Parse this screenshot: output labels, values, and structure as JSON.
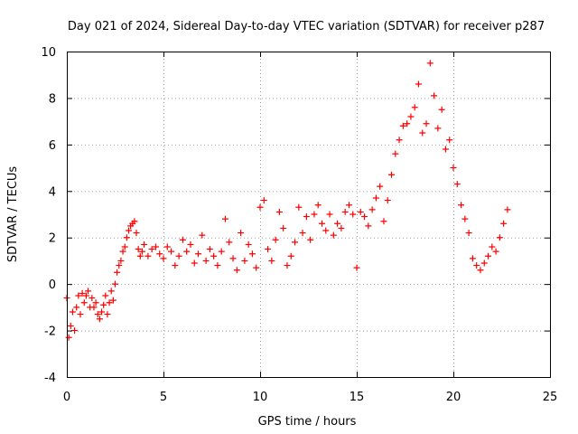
{
  "chart_data": {
    "type": "scatter",
    "title": "Day 021 of 2024, Sidereal Day-to-day VTEC variation (SDTVAR) for receiver p287",
    "xlabel": "GPS time / hours",
    "ylabel": "SDTVAR / TECUs",
    "xlim": [
      0,
      25
    ],
    "ylim": [
      -4,
      10
    ],
    "xticks": [
      "0",
      "5",
      "10",
      "15",
      "20",
      "25"
    ],
    "yticks": [
      "-4",
      "-2",
      "0",
      "2",
      "4",
      "6",
      "8",
      "10"
    ],
    "grid": true,
    "marker": "+",
    "color": "#ff0000",
    "series": [
      {
        "name": "SDTVAR",
        "x": [
          0.0,
          0.1,
          0.2,
          0.3,
          0.4,
          0.5,
          0.6,
          0.7,
          0.8,
          0.9,
          1.0,
          1.1,
          1.2,
          1.3,
          1.4,
          1.5,
          1.6,
          1.7,
          1.8,
          1.9,
          2.0,
          2.1,
          2.2,
          2.3,
          2.4,
          2.5,
          2.6,
          2.7,
          2.8,
          2.9,
          3.0,
          3.1,
          3.2,
          3.3,
          3.4,
          3.5,
          3.6,
          3.7,
          3.8,
          3.9,
          4.0,
          4.2,
          4.4,
          4.6,
          4.8,
          5.0,
          5.2,
          5.4,
          5.6,
          5.8,
          6.0,
          6.2,
          6.4,
          6.6,
          6.8,
          7.0,
          7.2,
          7.4,
          7.6,
          7.8,
          8.0,
          8.2,
          8.4,
          8.6,
          8.8,
          9.0,
          9.2,
          9.4,
          9.6,
          9.8,
          10.0,
          10.2,
          10.4,
          10.6,
          10.8,
          11.0,
          11.2,
          11.4,
          11.6,
          11.8,
          12.0,
          12.2,
          12.4,
          12.6,
          12.8,
          13.0,
          13.2,
          13.4,
          13.6,
          13.8,
          14.0,
          14.2,
          14.4,
          14.6,
          14.8,
          15.0,
          15.2,
          15.4,
          15.6,
          15.8,
          16.0,
          16.2,
          16.4,
          16.6,
          16.8,
          17.0,
          17.2,
          17.4,
          17.6,
          17.8,
          18.0,
          18.2,
          18.4,
          18.6,
          18.8,
          19.0,
          19.2,
          19.4,
          19.6,
          19.8,
          20.0,
          20.2,
          20.4,
          20.6,
          20.8,
          21.0,
          21.2,
          21.4,
          21.6,
          21.8,
          22.0,
          22.2,
          22.4,
          22.6,
          22.8
        ],
        "y": [
          -0.6,
          -2.3,
          -1.8,
          -1.2,
          -2.0,
          -1.0,
          -0.5,
          -1.3,
          -0.4,
          -0.8,
          -0.5,
          -0.3,
          -1.0,
          -0.6,
          -1.0,
          -0.8,
          -1.3,
          -1.5,
          -1.2,
          -0.9,
          -0.5,
          -1.3,
          -0.8,
          -0.3,
          -0.7,
          0.0,
          0.5,
          0.8,
          1.0,
          1.4,
          1.6,
          2.0,
          2.3,
          2.5,
          2.6,
          2.7,
          2.2,
          1.5,
          1.2,
          1.4,
          1.7,
          1.2,
          1.5,
          1.6,
          1.3,
          1.1,
          1.6,
          1.4,
          0.8,
          1.2,
          1.9,
          1.4,
          1.7,
          0.9,
          1.3,
          2.1,
          1.0,
          1.5,
          1.2,
          0.8,
          1.4,
          2.8,
          1.8,
          1.1,
          0.6,
          2.2,
          1.0,
          1.7,
          1.3,
          0.7,
          3.3,
          3.6,
          1.5,
          1.0,
          1.9,
          3.1,
          2.4,
          0.8,
          1.2,
          1.8,
          3.3,
          2.2,
          2.9,
          1.9,
          3.0,
          3.4,
          2.6,
          2.3,
          3.0,
          2.1,
          2.6,
          2.4,
          3.1,
          3.4,
          3.0,
          0.7,
          3.1,
          2.9,
          2.5,
          3.2,
          3.7,
          4.2,
          2.7,
          3.6,
          4.7,
          5.6,
          6.2,
          6.8,
          6.9,
          7.2,
          7.6,
          8.6,
          6.5,
          6.9,
          9.5,
          8.1,
          6.7,
          7.5,
          5.8,
          6.2,
          5.0,
          4.3,
          3.4,
          2.8,
          2.2,
          1.1,
          0.8,
          0.6,
          0.9,
          1.2,
          1.6,
          1.4,
          2.0,
          2.6,
          3.2
        ]
      }
    ]
  }
}
